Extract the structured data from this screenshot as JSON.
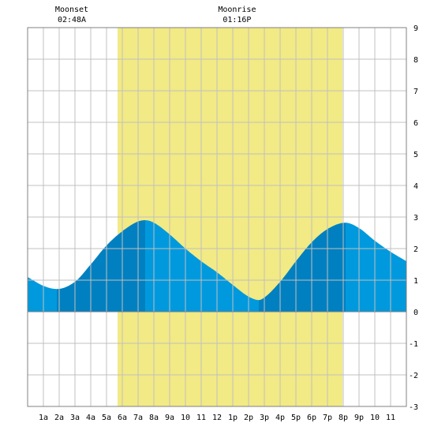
{
  "chart_data": {
    "type": "area",
    "title": "",
    "xlabel": "",
    "ylabel": "",
    "xlim": [
      0,
      24
    ],
    "ylim": [
      -3,
      9
    ],
    "grid": true,
    "x_tick_labels": [
      "1a",
      "2a",
      "3a",
      "4a",
      "5a",
      "6a",
      "7a",
      "8a",
      "9a",
      "10",
      "11",
      "12",
      "1p",
      "2p",
      "3p",
      "4p",
      "5p",
      "6p",
      "7p",
      "8p",
      "9p",
      "10",
      "11"
    ],
    "y_tick_labels": [
      "-3",
      "-2",
      "-1",
      "0",
      "1",
      "2",
      "3",
      "4",
      "5",
      "6",
      "7",
      "8",
      "9"
    ],
    "daylight": {
      "start_hour": 5.7,
      "end_hour": 19.95
    },
    "events": [
      {
        "label": "Moonset",
        "time": "02:48A",
        "hour": 2.8
      },
      {
        "label": "Moonrise",
        "time": "01:16P",
        "hour": 13.27
      }
    ],
    "tide_extrema": [
      {
        "hour": 1.85,
        "height": 0.72,
        "type": "low"
      },
      {
        "hour": 7.45,
        "height": 2.9,
        "type": "high"
      },
      {
        "hour": 14.65,
        "height": 0.37,
        "type": "low"
      },
      {
        "hour": 20.15,
        "height": 2.82,
        "type": "high"
      }
    ],
    "series": [
      {
        "x": [
          0,
          1,
          1.85,
          3,
          4,
          5,
          6,
          7,
          7.45,
          8,
          9,
          10,
          11,
          12,
          13,
          14,
          14.65,
          15,
          16,
          17,
          18,
          19,
          20.15,
          21,
          22,
          23,
          24
        ],
        "values": [
          1.1,
          0.82,
          0.72,
          0.95,
          1.5,
          2.1,
          2.55,
          2.86,
          2.9,
          2.82,
          2.45,
          2.0,
          1.6,
          1.25,
          0.85,
          0.48,
          0.37,
          0.45,
          0.95,
          1.6,
          2.2,
          2.62,
          2.82,
          2.65,
          2.25,
          1.9,
          1.6
        ]
      }
    ],
    "colors": {
      "daylight": "#f2ea84",
      "rising": "#0080c0",
      "falling": "#0099dd",
      "grid": "#c0c0c0",
      "border": "#808080"
    }
  }
}
